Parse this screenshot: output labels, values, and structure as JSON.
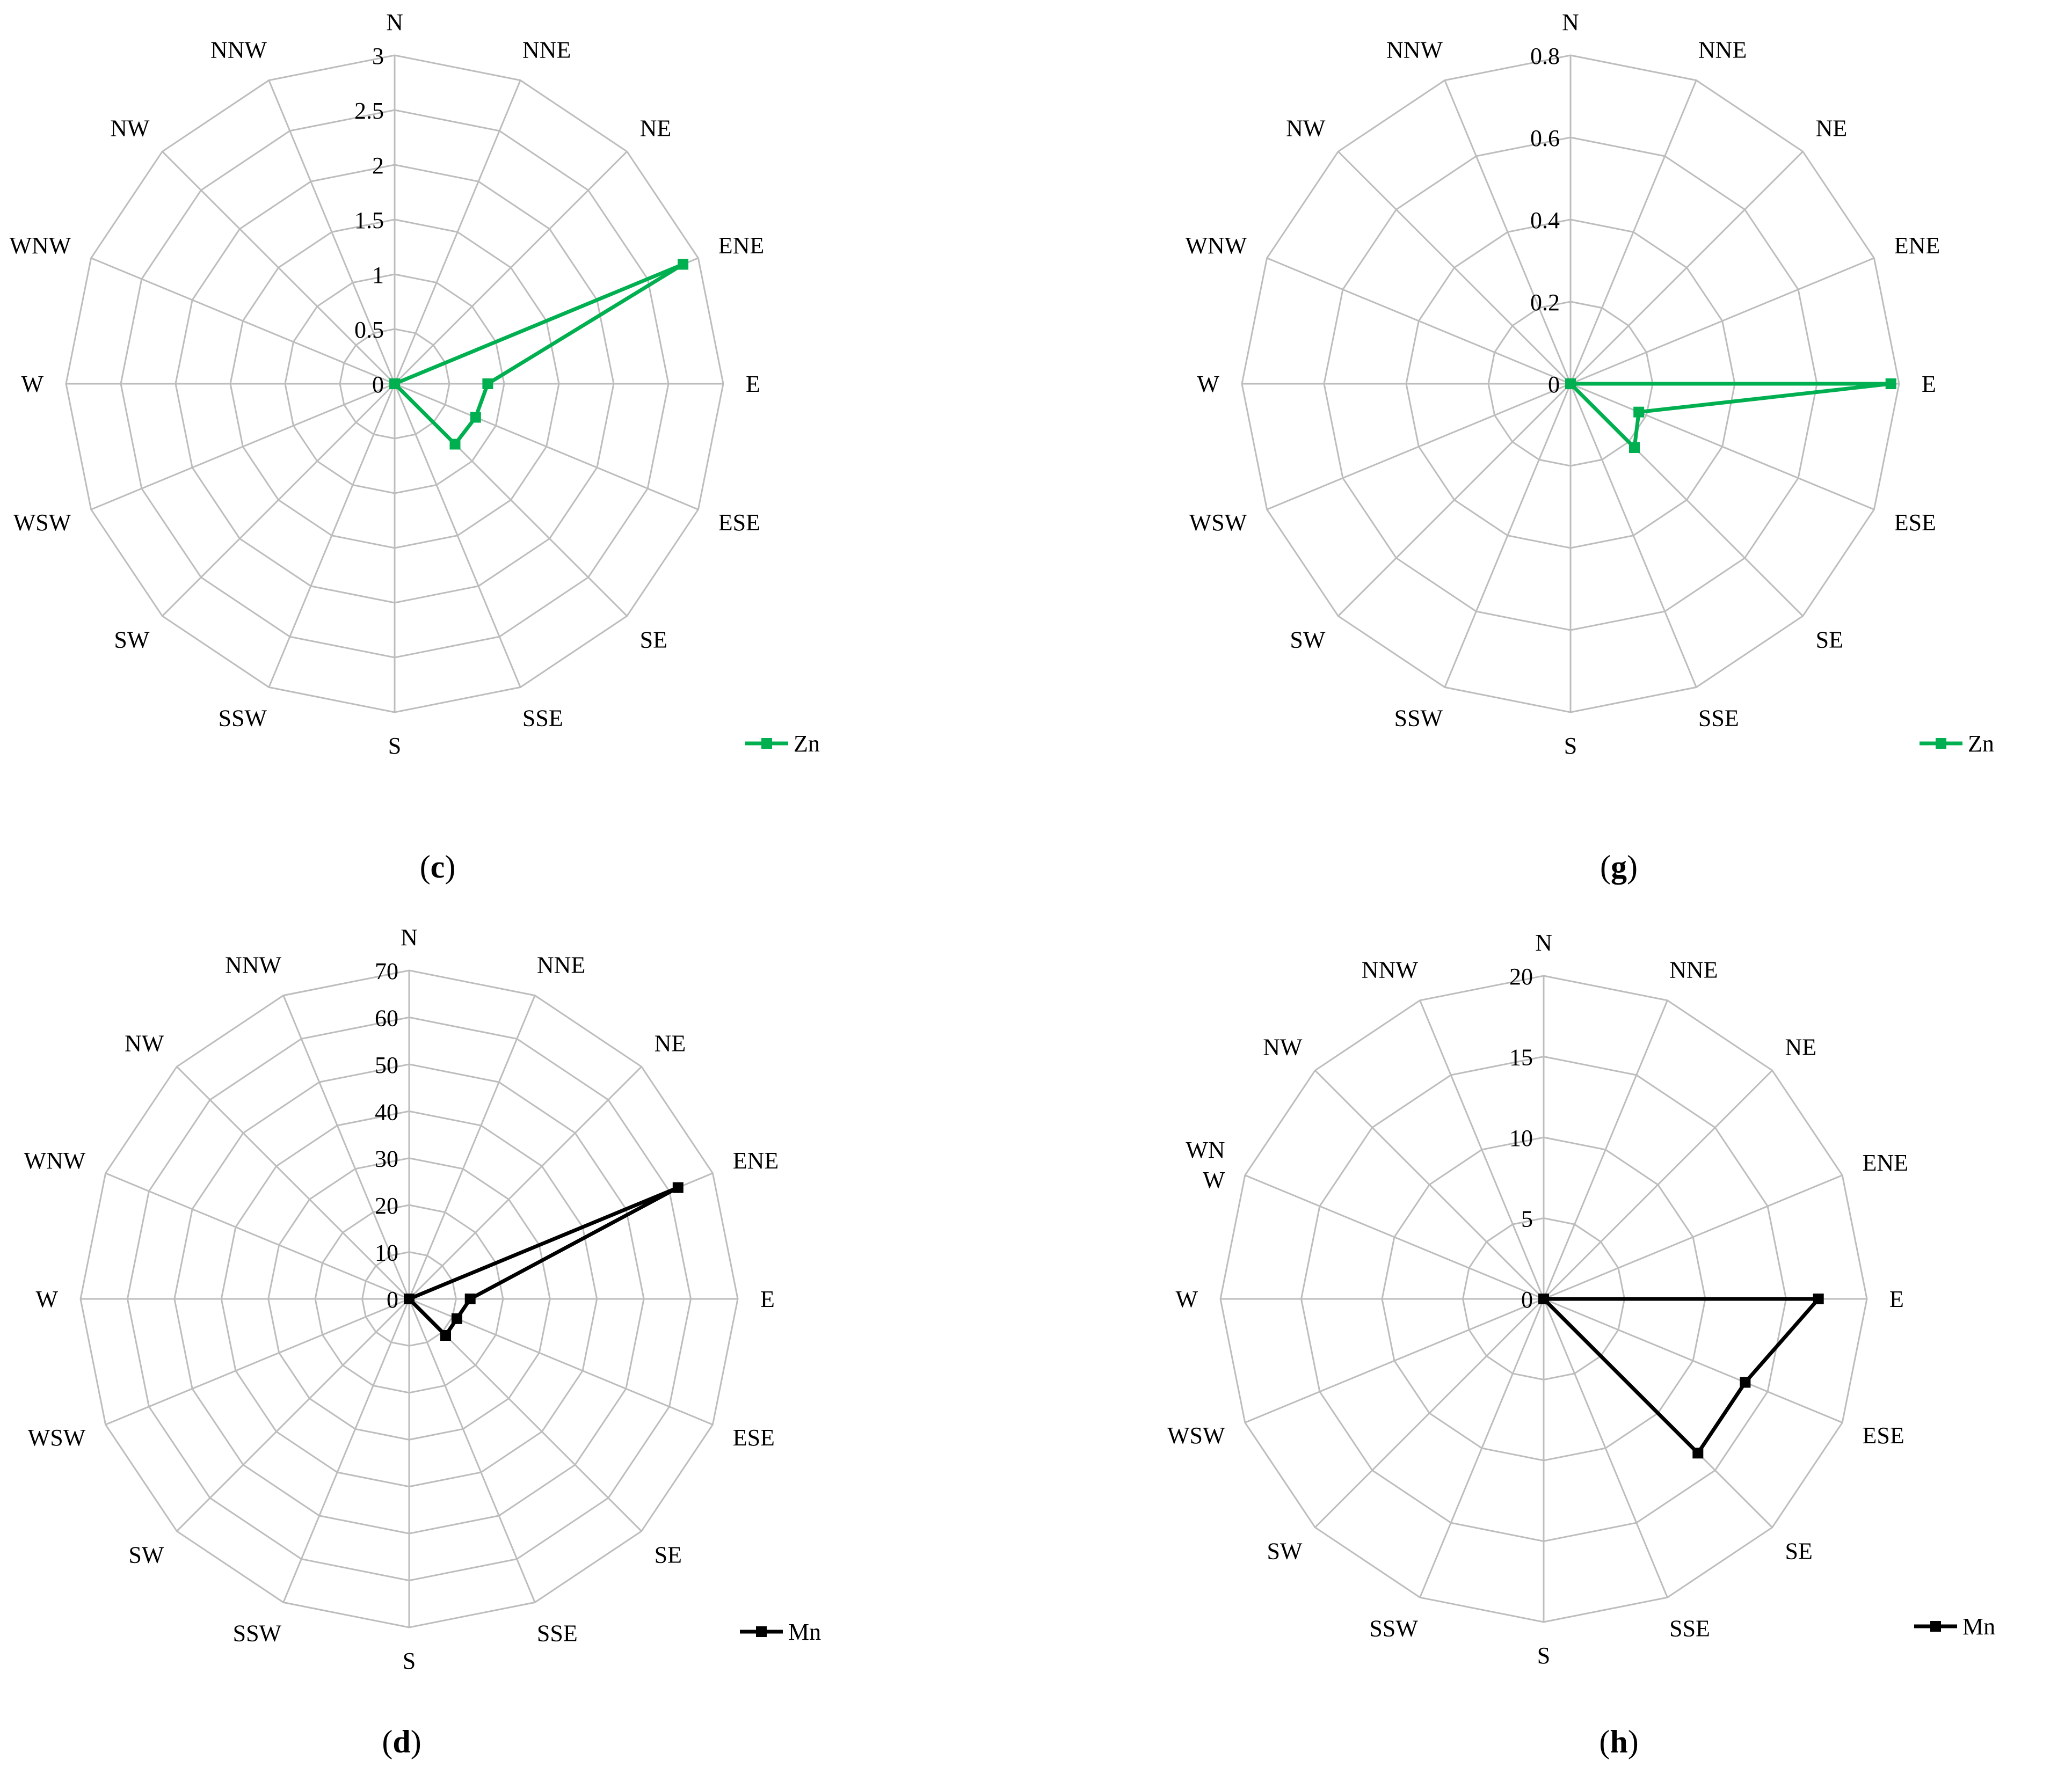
{
  "directions": [
    "N",
    "NNE",
    "NE",
    "ENE",
    "E",
    "ESE",
    "SE",
    "SSE",
    "S",
    "SSW",
    "SW",
    "WSW",
    "W",
    "WNW",
    "NW",
    "NNW"
  ],
  "colors": {
    "grid": "#bdbdbd",
    "zn": "#00b050",
    "mn": "#000000"
  },
  "chart_data": [
    {
      "type": "radar",
      "panel": "c",
      "panel_label": {
        "open": "(",
        "letter": "c",
        "close": ")"
      },
      "categories": [
        "N",
        "NNE",
        "NE",
        "ENE",
        "E",
        "ESE",
        "SE",
        "SSE",
        "S",
        "SSW",
        "SW",
        "WSW",
        "W",
        "WNW",
        "NW",
        "NNW"
      ],
      "category_labels": [
        "N",
        "NNE",
        "NE",
        "ENE",
        "E",
        "ESE",
        "SE",
        "SSE",
        "S",
        "SSW",
        "SW",
        "WSW",
        "W",
        "WNW",
        "NW",
        "NNW"
      ],
      "rlim": [
        0,
        3
      ],
      "ticks": [
        0,
        0.5,
        1,
        1.5,
        2,
        2.5,
        3
      ],
      "tick_labels": [
        "0",
        "0.5",
        "1",
        "1.5",
        "2",
        "2.5",
        "3"
      ],
      "grid": true,
      "legend": "right",
      "series": [
        {
          "name": "Zn",
          "color": "#00b050",
          "marker": "square",
          "values": [
            0,
            0,
            0,
            2.85,
            0.85,
            0.8,
            0.78,
            0,
            0,
            0,
            0,
            0,
            0,
            0,
            0,
            0
          ]
        }
      ]
    },
    {
      "type": "radar",
      "panel": "g",
      "panel_label": {
        "open": "(",
        "letter": "g",
        "close": ")"
      },
      "categories": [
        "N",
        "NNE",
        "NE",
        "ENE",
        "E",
        "ESE",
        "SE",
        "SSE",
        "S",
        "SSW",
        "SW",
        "WSW",
        "W",
        "WNW",
        "NW",
        "NNW"
      ],
      "category_labels": [
        "N",
        "NNE",
        "NE",
        "ENE",
        "E",
        "ESE",
        "SE",
        "SSE",
        "S",
        "SSW",
        "SW",
        "WSW",
        "W",
        "WNW",
        "NW",
        "NNW"
      ],
      "rlim": [
        0,
        0.8
      ],
      "ticks": [
        0,
        0.2,
        0.4,
        0.6,
        0.8
      ],
      "tick_labels": [
        "0",
        "0.2",
        "0.4",
        "0.6",
        "0.8"
      ],
      "grid": true,
      "legend": "right",
      "series": [
        {
          "name": "Zn",
          "color": "#00b050",
          "marker": "square",
          "values": [
            0,
            0,
            0,
            0,
            0.78,
            0.18,
            0.22,
            0,
            0,
            0,
            0,
            0,
            0,
            0,
            0,
            0
          ]
        }
      ]
    },
    {
      "type": "radar",
      "panel": "d",
      "panel_label": {
        "open": "(",
        "letter": "d",
        "close": ")"
      },
      "categories": [
        "N",
        "NNE",
        "NE",
        "ENE",
        "E",
        "ESE",
        "SE",
        "SSE",
        "S",
        "SSW",
        "SW",
        "WSW",
        "W",
        "WNW",
        "NW",
        "NNW"
      ],
      "category_labels": [
        "N",
        "NNE",
        "NE",
        "ENE",
        "E",
        "ESE",
        "SE",
        "SSE",
        "S",
        "SSW",
        "SW",
        "WSW",
        "W",
        "WNW",
        "NW",
        "NNW"
      ],
      "rlim": [
        0,
        70
      ],
      "ticks": [
        0,
        10,
        20,
        30,
        40,
        50,
        60,
        70
      ],
      "tick_labels": [
        "0",
        "10",
        "20",
        "30",
        "40",
        "50",
        "60",
        "70"
      ],
      "grid": true,
      "legend": "right",
      "series": [
        {
          "name": "Mn",
          "color": "#000000",
          "marker": "square",
          "values": [
            0,
            0,
            0,
            62,
            13,
            11,
            11,
            0,
            0,
            0,
            0,
            0,
            0,
            0,
            0,
            0
          ]
        }
      ]
    },
    {
      "type": "radar",
      "panel": "h",
      "panel_label": {
        "open": "(",
        "letter": "h",
        "close": ")"
      },
      "categories": [
        "N",
        "NNE",
        "NE",
        "ENE",
        "E",
        "ESE",
        "SE",
        "SSE",
        "S",
        "SSW",
        "SW",
        "WSW",
        "W",
        "WNW",
        "NW",
        "NNW"
      ],
      "category_labels": [
        "N",
        "NNE",
        "NE",
        "ENE",
        "E",
        "ESE",
        "SE",
        "SSE",
        "S",
        "SSW",
        "SW",
        "WSW",
        "W",
        "WN\nW",
        "NW",
        "NNW"
      ],
      "rlim": [
        0,
        20
      ],
      "ticks": [
        0,
        5,
        10,
        15,
        20
      ],
      "tick_labels": [
        "0",
        "5",
        "10",
        "15",
        "20"
      ],
      "grid": true,
      "legend": "right",
      "series": [
        {
          "name": "Mn",
          "color": "#000000",
          "marker": "square",
          "values": [
            0,
            0,
            0,
            0,
            17,
            13.5,
            13.5,
            0,
            0,
            0,
            0,
            0,
            0,
            0,
            0,
            0
          ]
        }
      ]
    }
  ]
}
